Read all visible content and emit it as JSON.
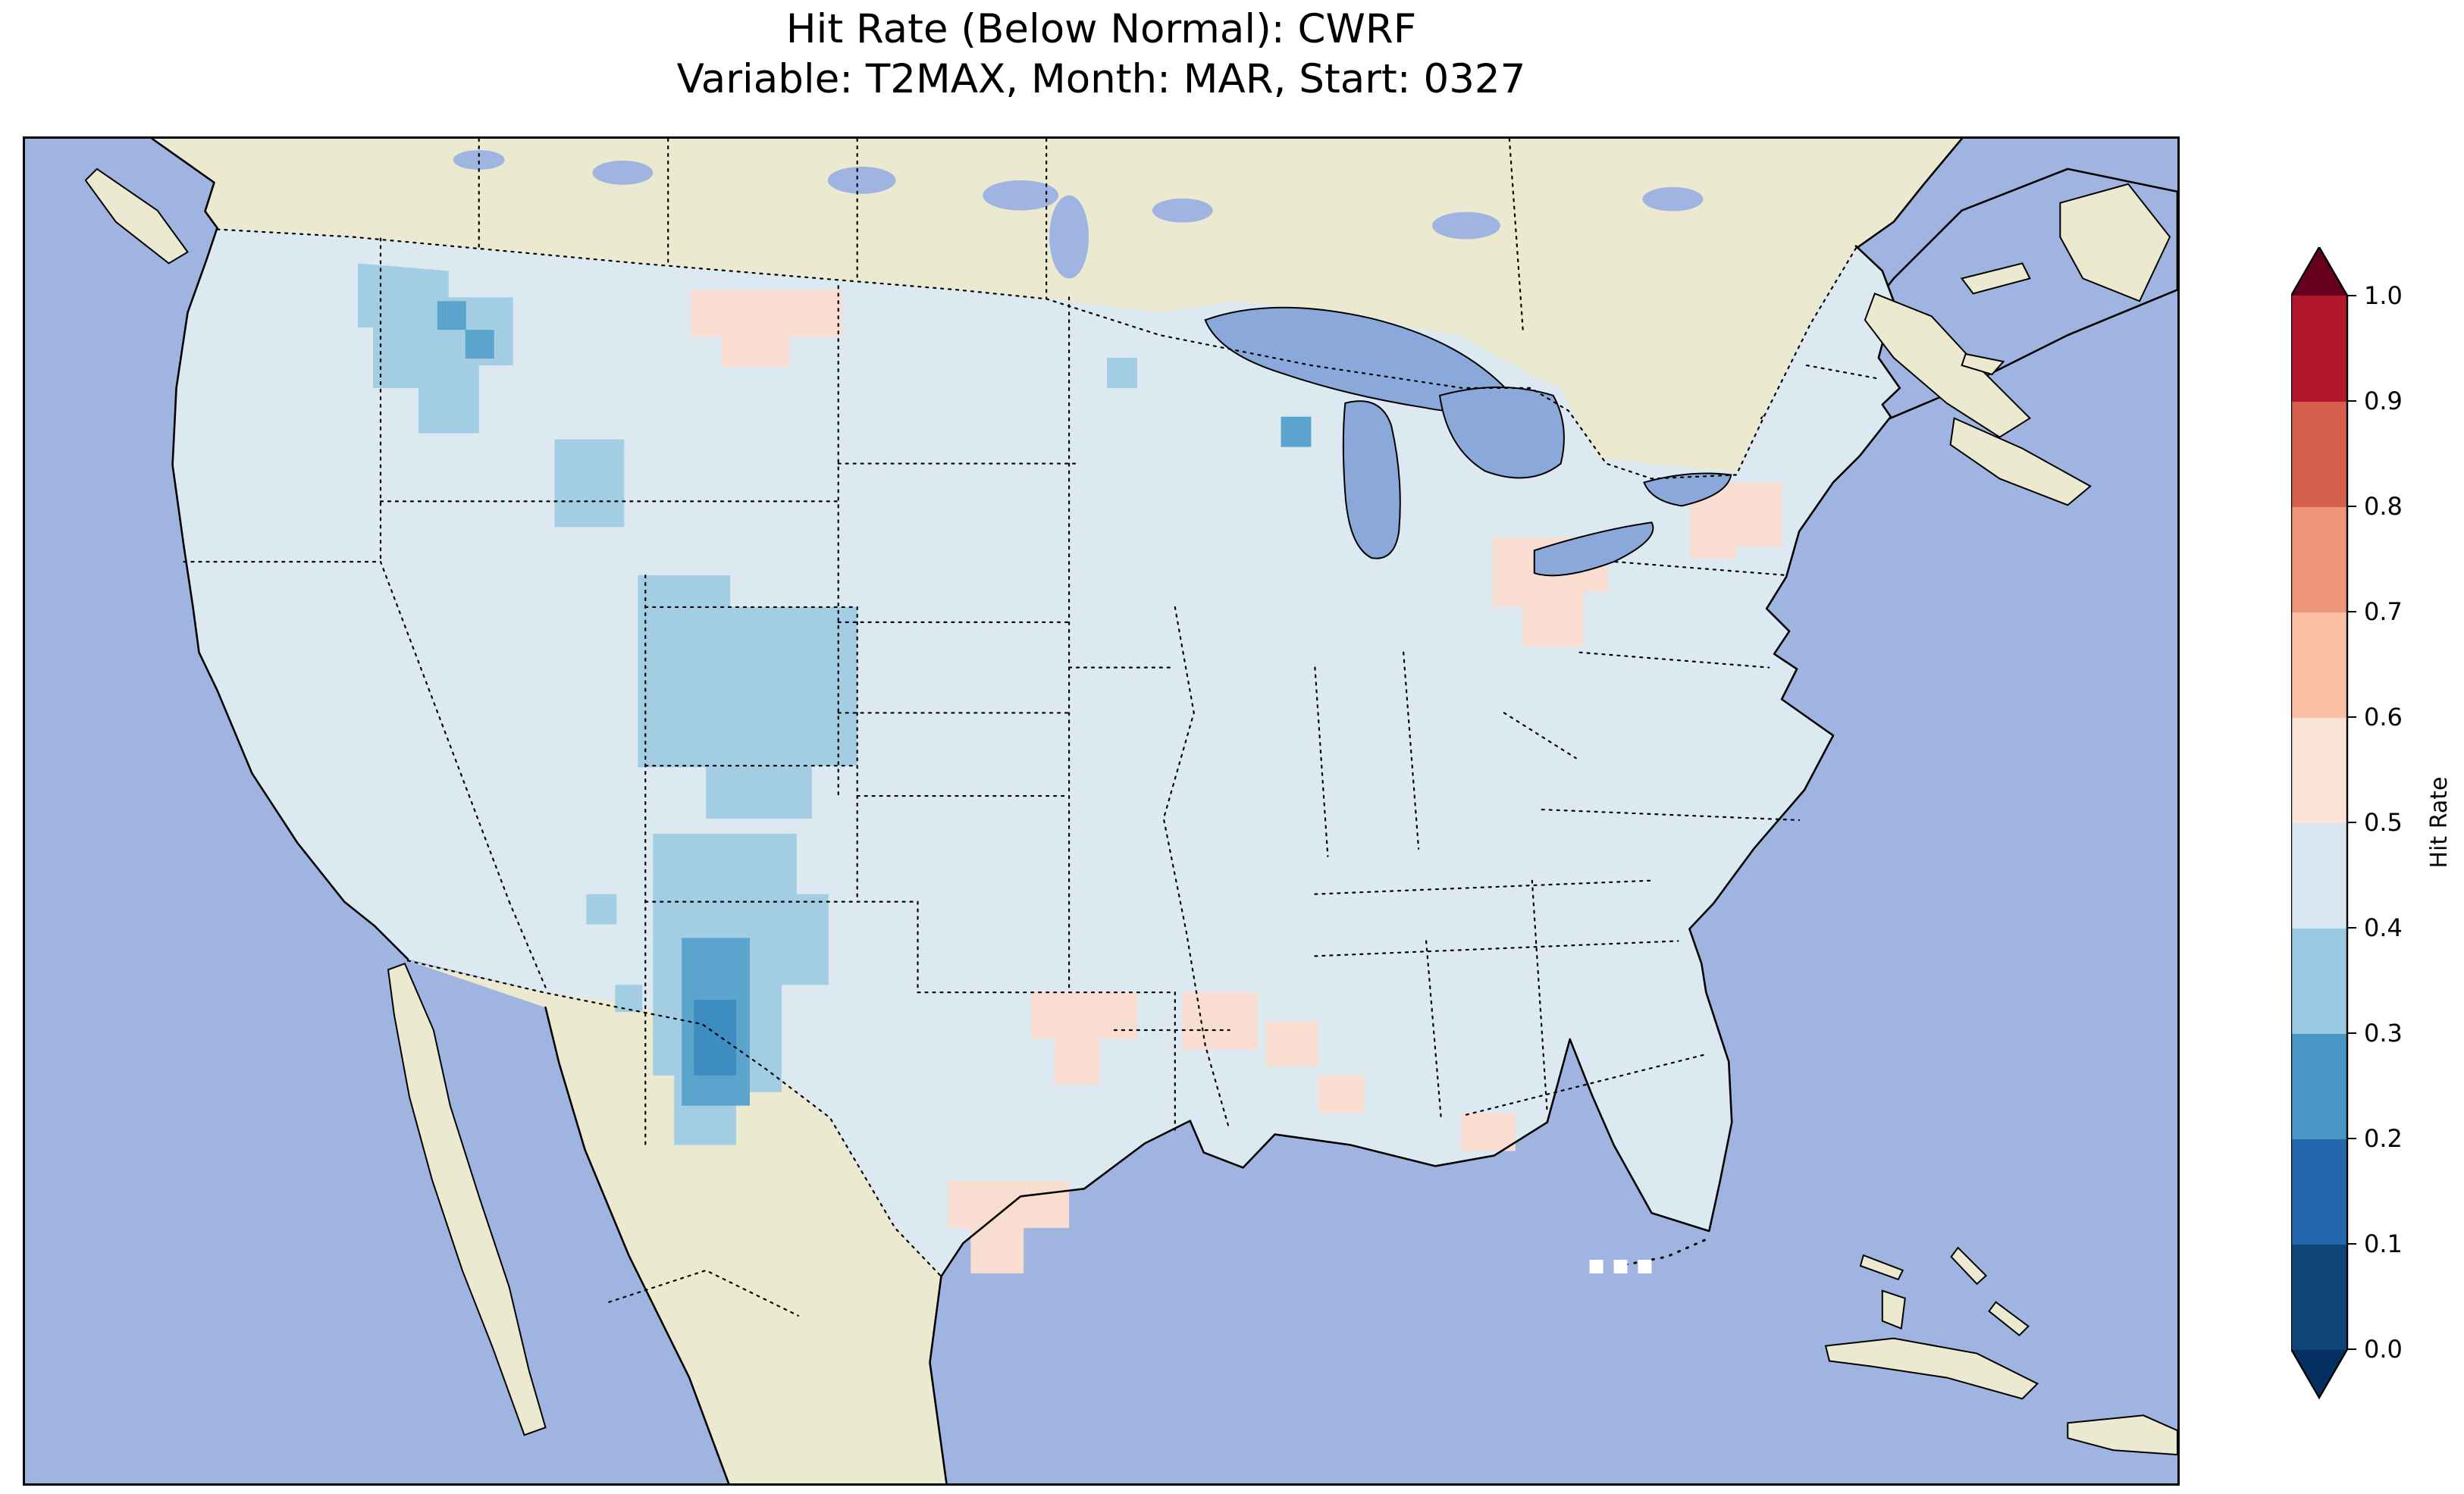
{
  "figure": {
    "title_line1": "Hit Rate (Below Normal): CWRF",
    "title_line2": "Variable: T2MAX, Month: MAR, Start: 0327"
  },
  "colorbar": {
    "label": "Hit Rate",
    "ticks": [
      "1.0",
      "0.9",
      "0.8",
      "0.7",
      "0.6",
      "0.5",
      "0.4",
      "0.3",
      "0.2",
      "0.1",
      "0.0"
    ],
    "segments_top_to_bottom": [
      "#b2182b",
      "#d6604d",
      "#ee9677",
      "#fbc0a4",
      "#fbe3d6",
      "#d7e7f1",
      "#9ac8e0",
      "#4796c4",
      "#2368ac",
      "#0f4579"
    ],
    "over_arrow_color": "#67001f",
    "under_arrow_color": "#053061"
  },
  "map": {
    "ocean_color": "#9fb4e0",
    "land_color": "#ece9d1",
    "us_fill_color": "#dde9f1",
    "lake_color": "#8ba8da",
    "patch_colors": {
      "blue_light": "#a3cde3",
      "blue_mid": "#5ba4cd",
      "blue_dark": "#3d8dc0",
      "pink": "#f9ddd1"
    },
    "missing_cell_color": "#ffffff",
    "border_color": "#000000"
  },
  "chart_data": {
    "type": "heatmap",
    "title": "Hit Rate (Below Normal): CWRF",
    "subtitle": "Variable: T2MAX, Month: MAR, Start: 0327",
    "model": "CWRF",
    "variable": "T2MAX",
    "month": "MAR",
    "start": "0327",
    "geography": "Contiguous United States (gridded forecast verification map)",
    "colorbar_label": "Hit Rate",
    "colorbar_ticks": [
      0.0,
      0.1,
      0.2,
      0.3,
      0.4,
      0.5,
      0.6,
      0.7,
      0.8,
      0.9,
      1.0
    ],
    "value_range": [
      0.0,
      1.0
    ],
    "colormap": "RdBu_r discrete, 10 bins with under/over arrows (blue = low hit rate, red = high hit rate)",
    "regions_estimated_values": [
      {
        "region": "Most of contiguous US (baseline)",
        "hit_rate": 0.45
      },
      {
        "region": "Idaho / western Montana",
        "hit_rate": 0.35
      },
      {
        "region": "Western Wyoming",
        "hit_rate": 0.35
      },
      {
        "region": "Eastern Utah / western Colorado",
        "hit_rate": 0.35
      },
      {
        "region": "Central New Mexico",
        "hit_rate": 0.3
      },
      {
        "region": "Central New Mexico core",
        "hit_rate": 0.25
      },
      {
        "region": "Scattered Arizona / Nevada cells",
        "hit_rate": 0.35
      },
      {
        "region": "Northern North Dakota / eastern Montana",
        "hit_rate": 0.55
      },
      {
        "region": "Central Minnesota cells",
        "hit_rate": 0.35
      },
      {
        "region": "Ohio",
        "hit_rate": 0.55
      },
      {
        "region": "Northeast Pennsylvania / southern New York",
        "hit_rate": 0.55
      },
      {
        "region": "Central Texas / Oklahoma border",
        "hit_rate": 0.55
      },
      {
        "region": "Louisiana / Mississippi patches",
        "hit_rate": 0.55
      },
      {
        "region": "South Texas Gulf Coast",
        "hit_rate": 0.55
      },
      {
        "region": "Florida panhandle coast",
        "hit_rate": 0.55
      }
    ],
    "legend_position": "right vertical colorbar",
    "grid": "off"
  }
}
